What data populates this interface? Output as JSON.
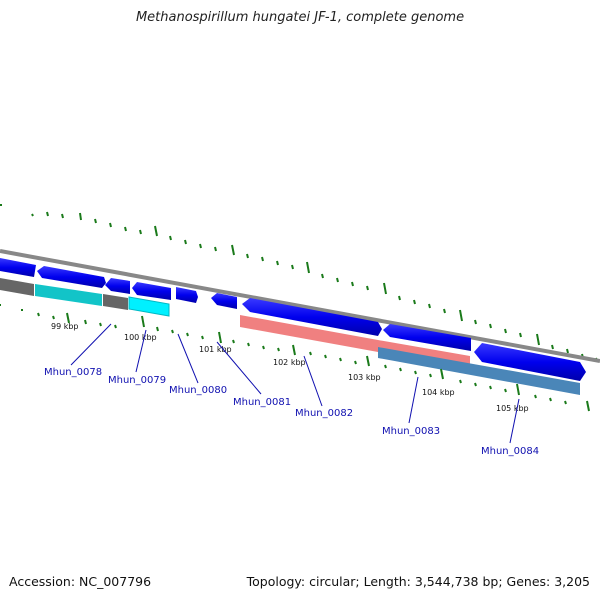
{
  "title": "Methanospirillum hungatei JF-1, complete genome",
  "footer": {
    "accession": "Accession: NC_007796",
    "summary": "Topology: circular; Length: 3,544,738 bp; Genes: 3,205"
  },
  "ticks": [
    "99 kbp",
    "100 kbp",
    "101 kbp",
    "102 kbp",
    "103 kbp",
    "104 kbp",
    "105 kbp"
  ],
  "genes": [
    "Mhun_0078",
    "Mhun_0079",
    "Mhun_0080",
    "Mhun_0081",
    "Mhun_0082",
    "Mhun_0083",
    "Mhun_0084"
  ],
  "colors": {
    "cds": "#0000ee",
    "backbone": "#888888",
    "tick": "#1a7a1a",
    "label": "#1010b0",
    "cog_gray": "#666666",
    "cog_teal": "#12c4c8",
    "cog_cyan": "#00f0ff",
    "cog_salmon": "#f08080",
    "cog_steel": "#4a86b8"
  }
}
